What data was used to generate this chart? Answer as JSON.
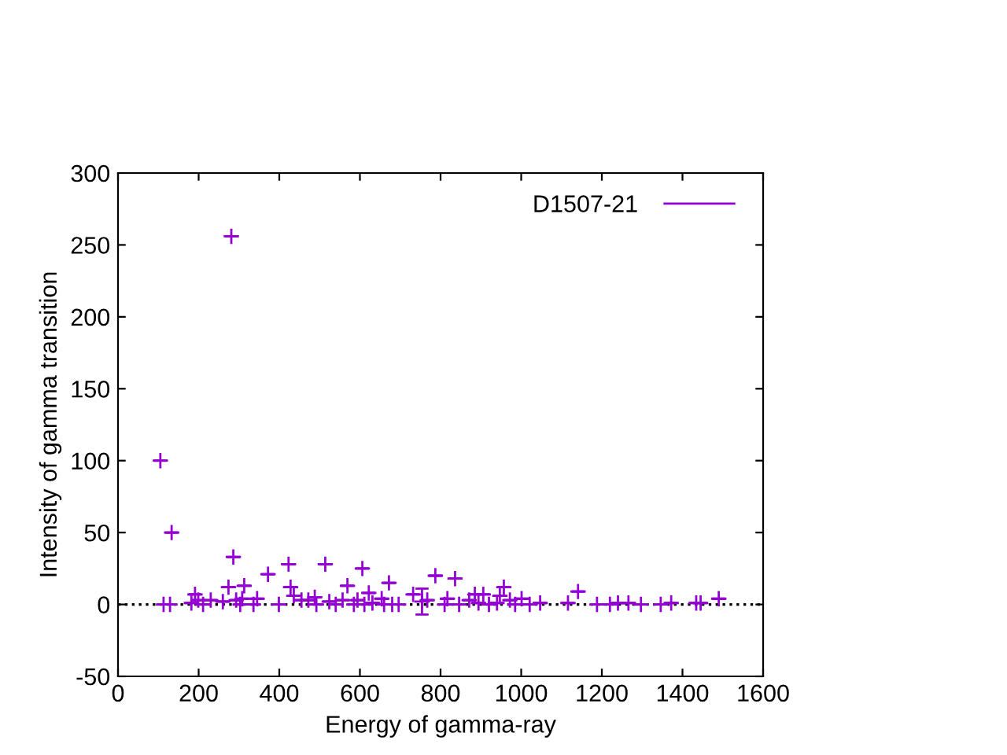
{
  "chart_data": {
    "type": "scatter",
    "xlabel": "Energy of gamma-ray",
    "ylabel": "Intensity of gamma transition",
    "xlim": [
      0,
      1600
    ],
    "xticks": [
      0,
      200,
      400,
      600,
      800,
      1000,
      1200,
      1400,
      1600
    ],
    "ylim": [
      -50,
      300
    ],
    "yticks": [
      -50,
      0,
      50,
      100,
      150,
      200,
      250,
      300
    ],
    "grid": false,
    "legend": "top right",
    "marker": "cross",
    "ref_lines": [
      {
        "axis": "y",
        "value": 0,
        "color": "#000000",
        "line_style": "dotted"
      }
    ],
    "series": [
      {
        "name": "D1507-21",
        "color": "#9400d3",
        "x": [
          105,
          133,
          281,
          113,
          129,
          182,
          191,
          199,
          211,
          230,
          260,
          274,
          286,
          293,
          303,
          313,
          308,
          336,
          345,
          372,
          399,
          423,
          428,
          436,
          455,
          472,
          488,
          492,
          514,
          524,
          540,
          557,
          569,
          585,
          594,
          606,
          611,
          622,
          631,
          654,
          660,
          672,
          680,
          696,
          732,
          754,
          767,
          787,
          810,
          817,
          836,
          846,
          871,
          885,
          894,
          906,
          920,
          940,
          947,
          957,
          972,
          985,
          1001,
          1021,
          1047,
          1116,
          1141,
          1188,
          1220,
          1240,
          1266,
          1297,
          1346,
          1372,
          1434,
          1445,
          1490
        ],
        "values": [
          100,
          50,
          256,
          0,
          0,
          1,
          7,
          3,
          0,
          3,
          2,
          12,
          33,
          3,
          0,
          13,
          4,
          0,
          4,
          21,
          0,
          28,
          12,
          6,
          3,
          3,
          5,
          0,
          28,
          2,
          0,
          3,
          13,
          0,
          3,
          25,
          0,
          8,
          1,
          4,
          0,
          15,
          0,
          0,
          7,
          2,
          3,
          20,
          0,
          4,
          18,
          0,
          3,
          7,
          1,
          7,
          0,
          1,
          6,
          12,
          3,
          0,
          4,
          0,
          1,
          1,
          9,
          0,
          0,
          1,
          1,
          0,
          0,
          1,
          1,
          1,
          4
        ],
        "errors": [
          null,
          null,
          null,
          null,
          null,
          null,
          null,
          null,
          null,
          null,
          null,
          null,
          null,
          null,
          null,
          null,
          null,
          null,
          null,
          null,
          null,
          null,
          null,
          null,
          null,
          null,
          null,
          null,
          null,
          null,
          null,
          null,
          null,
          null,
          null,
          null,
          null,
          null,
          null,
          null,
          null,
          null,
          null,
          null,
          null,
          9,
          null,
          null,
          null,
          null,
          null,
          null,
          null,
          null,
          null,
          null,
          null,
          null,
          null,
          null,
          null,
          null,
          null,
          null,
          null,
          null,
          null,
          null,
          null,
          null,
          null,
          null,
          null,
          null,
          null,
          null,
          null
        ]
      }
    ]
  }
}
